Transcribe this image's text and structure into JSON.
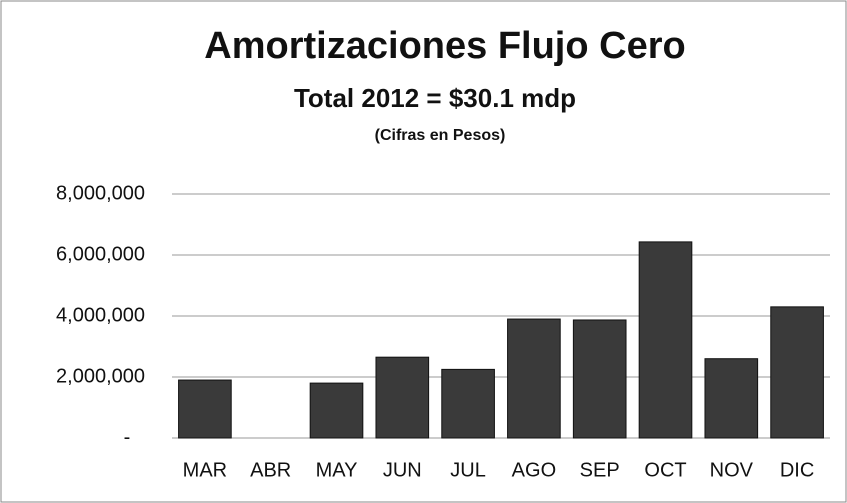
{
  "chart_data": {
    "type": "bar",
    "title": "Amortizaciones Flujo Cero",
    "subtitle": "Total 2012 = $30.1 mdp",
    "note": "(Cifras en Pesos)",
    "categories": [
      "MAR",
      "ABR",
      "MAY",
      "JUN",
      "JUL",
      "AGO",
      "SEP",
      "OCT",
      "NOV",
      "DIC"
    ],
    "values": [
      1900000,
      0,
      1800000,
      2650000,
      2250000,
      3900000,
      3870000,
      6430000,
      2600000,
      4300000
    ],
    "color": "#3a3a3a",
    "ylim": [
      0,
      8000000
    ],
    "yticks": [
      {
        "value": 0,
        "label": "-"
      },
      {
        "value": 2000000,
        "label": "2,000,000"
      },
      {
        "value": 4000000,
        "label": "4,000,000"
      },
      {
        "value": 6000000,
        "label": "6,000,000"
      },
      {
        "value": 8000000,
        "label": "8,000,000"
      }
    ],
    "grid": true
  }
}
